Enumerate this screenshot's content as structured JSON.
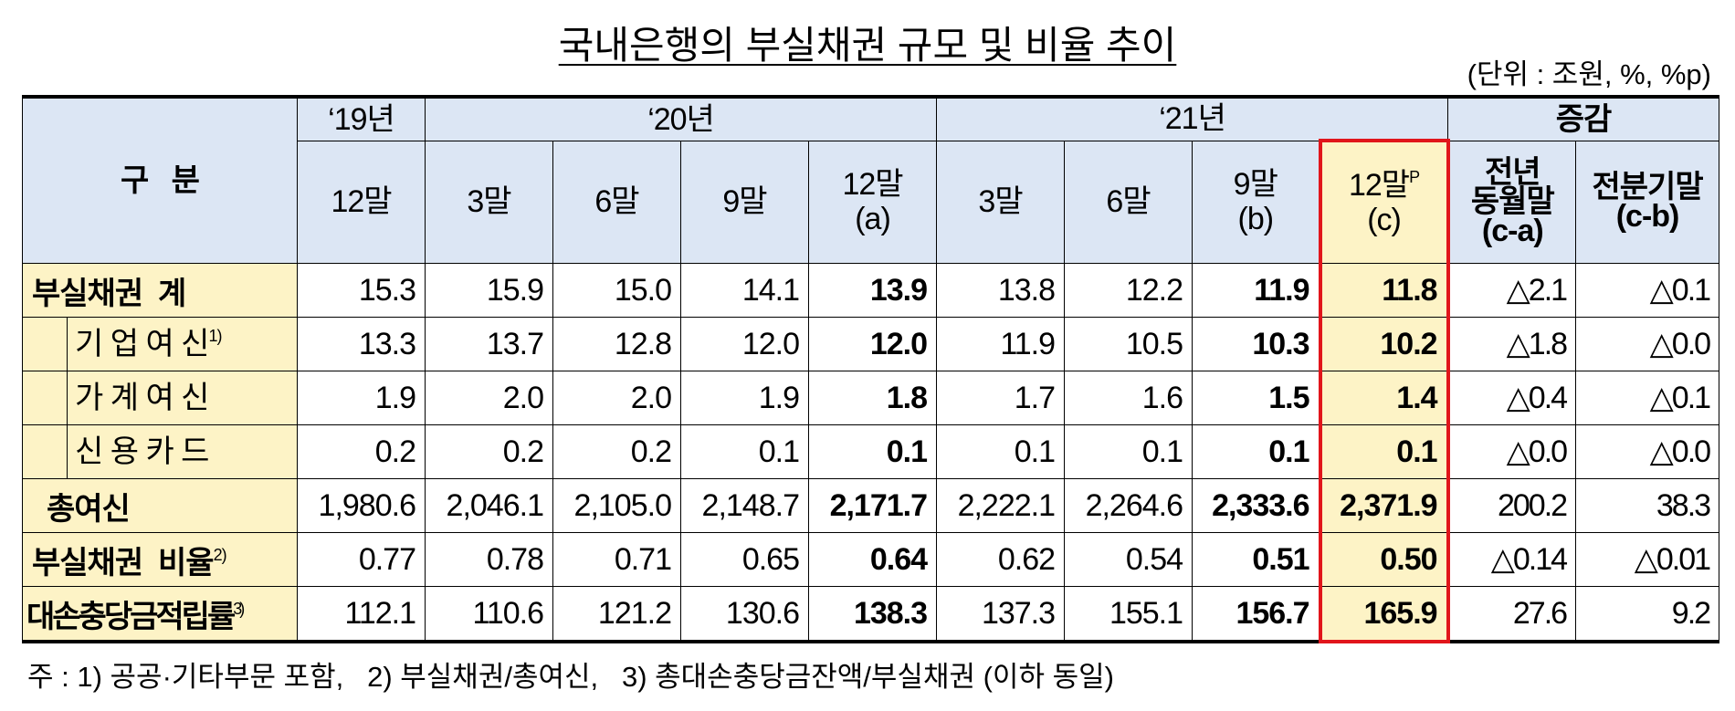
{
  "title": "국내은행의 부실채권 규모 및 비율 추이",
  "unit": "(단위 : 조원, %, %p)",
  "table": {
    "corner": "구   분",
    "groups": [
      "‘19년",
      "‘20년",
      "‘21년",
      "증감"
    ],
    "columns": [
      {
        "lines": [
          "12말"
        ]
      },
      {
        "lines": [
          "3말"
        ]
      },
      {
        "lines": [
          "6말"
        ]
      },
      {
        "lines": [
          "9말"
        ]
      },
      {
        "lines": [
          "12말",
          "(a)"
        ]
      },
      {
        "lines": [
          "3말"
        ]
      },
      {
        "lines": [
          "6말"
        ]
      },
      {
        "lines": [
          "9말",
          "(b)"
        ]
      },
      {
        "lines": [
          "12말",
          "(c)"
        ],
        "sup": "P"
      },
      {
        "lines": [
          "전년",
          "동월말",
          "(c-a)"
        ]
      },
      {
        "lines": [
          "전분기말",
          "(c-b)"
        ]
      }
    ],
    "rows": [
      {
        "label": "부실채권  계",
        "values": [
          "15.3",
          "15.9",
          "15.0",
          "14.1",
          "13.9",
          "13.8",
          "12.2",
          "11.9",
          "11.8",
          "△2.1",
          "△0.1"
        ]
      },
      {
        "label": "기 업 여 신",
        "note": "1)",
        "values": [
          "13.3",
          "13.7",
          "12.8",
          "12.0",
          "12.0",
          "11.9",
          "10.5",
          "10.3",
          "10.2",
          "△1.8",
          "△0.0"
        ]
      },
      {
        "label": "가 계 여 신",
        "values": [
          "1.9",
          "2.0",
          "2.0",
          "1.9",
          "1.8",
          "1.7",
          "1.6",
          "1.5",
          "1.4",
          "△0.4",
          "△0.1"
        ]
      },
      {
        "label": "신 용 카 드",
        "values": [
          "0.2",
          "0.2",
          "0.2",
          "0.1",
          "0.1",
          "0.1",
          "0.1",
          "0.1",
          "0.1",
          "△0.0",
          "△0.0"
        ]
      },
      {
        "label": "총여신",
        "values": [
          "1,980.6",
          "2,046.1",
          "2,105.0",
          "2,148.7",
          "2,171.7",
          "2,222.1",
          "2,264.6",
          "2,333.6",
          "2,371.9",
          "200.2",
          "38.3"
        ]
      },
      {
        "label": "부실채권  비율",
        "note": "2)",
        "values": [
          "0.77",
          "0.78",
          "0.71",
          "0.65",
          "0.64",
          "0.62",
          "0.54",
          "0.51",
          "0.50",
          "△0.14",
          "△0.01"
        ]
      },
      {
        "label": "대손충당금적립률",
        "note": "3)",
        "values": [
          "112.1",
          "110.6",
          "121.2",
          "130.6",
          "138.3",
          "137.3",
          "155.1",
          "156.7",
          "165.9",
          "27.6",
          "9.2"
        ]
      }
    ]
  },
  "footnote": "주 : 1) 공공·기타부문 포함,   2) 부실채권/총여신,   3) 총대손충당금잔액/부실채권 (이하 동일)"
}
